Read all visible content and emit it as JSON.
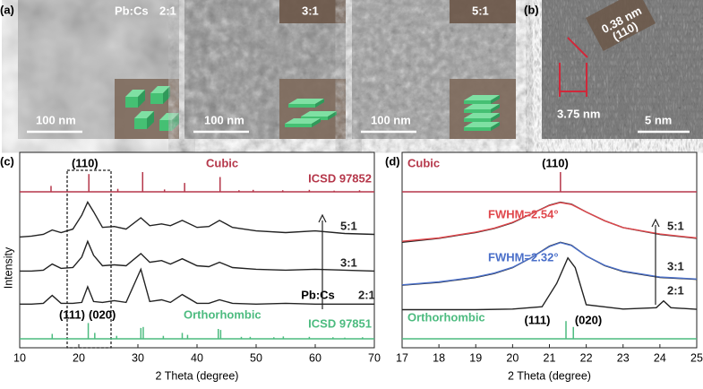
{
  "panel_labels": [
    "(a)",
    "(b)",
    "(c)",
    "(d)"
  ],
  "tem_images": [
    {
      "labels": [
        "Pb:Cs",
        "2:1"
      ],
      "scale_bar": "100 nm"
    },
    {
      "labels": [
        "3:1"
      ],
      "scale_bar": "100 nm"
    },
    {
      "labels": [
        "5:1"
      ],
      "scale_bar": "100 nm"
    }
  ],
  "hrtem": {
    "annotations": [
      "0.38 nm",
      "(110)",
      "3.75 nm"
    ],
    "scale_bar": "5 nm"
  },
  "chart_data": [
    {
      "type": "line",
      "xlabel": "2 Theta (degree)",
      "ylabel": "Intensity",
      "xlim": [
        10,
        70
      ],
      "xticks": [
        10,
        20,
        30,
        40,
        50,
        60,
        70
      ],
      "ylim": [
        0,
        11.2
      ],
      "series": [
        {
          "name": "5:1",
          "color": "#222222",
          "x": [
            10,
            12,
            14,
            15.5,
            17,
            19,
            20.5,
            21.5,
            22.5,
            24,
            26,
            28,
            30.5,
            32,
            34,
            35.5,
            37.5,
            40,
            42,
            43.8,
            46,
            50,
            55,
            60,
            65,
            70
          ],
          "values": [
            6.35,
            6.4,
            6.5,
            6.75,
            6.6,
            6.8,
            7.6,
            8.35,
            7.8,
            6.9,
            6.95,
            6.8,
            7.45,
            7.0,
            7.1,
            7.0,
            7.3,
            6.9,
            6.95,
            7.3,
            6.9,
            6.7,
            6.6,
            6.7,
            6.55,
            6.5
          ]
        },
        {
          "name": "3:1",
          "color": "#222222",
          "x": [
            10,
            12,
            14,
            15.5,
            17,
            19,
            20.5,
            21.5,
            22.5,
            24,
            26,
            28,
            30.5,
            32,
            34,
            35.5,
            37.5,
            40,
            42,
            43.8,
            46,
            50,
            55,
            60,
            65,
            70
          ],
          "values": [
            4.4,
            4.4,
            4.45,
            4.8,
            4.55,
            4.6,
            5.2,
            6.1,
            5.3,
            4.7,
            4.75,
            4.7,
            5.4,
            4.9,
            5.0,
            4.8,
            5.1,
            4.7,
            4.65,
            4.9,
            4.6,
            4.5,
            4.45,
            4.5,
            4.45,
            4.4
          ]
        },
        {
          "name": "2:1",
          "color": "#222222",
          "x": [
            10,
            12,
            14,
            15.5,
            17,
            19,
            20.5,
            21.5,
            22.5,
            24,
            26,
            28,
            30.5,
            32,
            34,
            35.5,
            37.5,
            40,
            42,
            43.8,
            46,
            50,
            55,
            60,
            65,
            70
          ],
          "values": [
            2.5,
            2.5,
            2.55,
            3.0,
            2.55,
            2.55,
            2.6,
            3.5,
            2.65,
            2.6,
            2.7,
            2.6,
            4.5,
            2.65,
            2.75,
            2.6,
            3.05,
            2.55,
            2.55,
            2.75,
            2.55,
            2.5,
            2.55,
            2.5,
            2.5,
            2.5
          ]
        }
      ],
      "references": [
        {
          "name": "Cubic",
          "label": "ICSD 97852",
          "color": "#b5374a",
          "positions": [
            15.3,
            21.7,
            26.6,
            30.8,
            34.5,
            37.9,
            43.9,
            47.1,
            49.5,
            54.5,
            59,
            63.2,
            67.5
          ],
          "intensities": [
            30,
            90,
            15,
            100,
            12,
            45,
            75,
            8,
            10,
            8,
            10,
            6,
            8
          ]
        },
        {
          "name": "Orthorhombic",
          "label": "ICSD 97851",
          "color": "#4cbb7f",
          "positions": [
            15.5,
            21.6,
            22.7,
            26.4,
            30.5,
            30.9,
            34.3,
            37.5,
            38.4,
            43.6,
            44,
            47.5,
            49,
            53,
            54.6,
            59,
            63,
            65,
            68
          ],
          "intensities": [
            25,
            80,
            30,
            15,
            55,
            60,
            15,
            30,
            20,
            50,
            45,
            10,
            10,
            8,
            12,
            10,
            8,
            6,
            8
          ]
        }
      ],
      "annotations": [
        "(110)",
        "(111)",
        "(020)",
        "Pb:Cs"
      ]
    },
    {
      "type": "line",
      "xlabel": "2 Theta (degree)",
      "xlim": [
        17,
        25
      ],
      "xticks": [
        17,
        18,
        19,
        20,
        21,
        22,
        23,
        24,
        25
      ],
      "ylim": [
        0,
        10
      ],
      "series": [
        {
          "name": "5:1",
          "color": "#222222",
          "x": [
            17,
            18,
            19,
            19.5,
            20,
            20.5,
            21,
            21.3,
            21.6,
            22,
            22.5,
            23,
            24,
            25
          ],
          "values": [
            5.4,
            5.6,
            5.9,
            6.1,
            6.4,
            6.85,
            7.3,
            7.45,
            7.35,
            6.95,
            6.5,
            6.15,
            5.8,
            5.6
          ]
        },
        {
          "name": "FWHM=2.54°",
          "color": "#e0474c",
          "x": [
            17,
            18,
            19,
            19.5,
            20,
            20.5,
            21,
            21.3,
            21.6,
            22,
            22.5,
            23,
            24,
            25
          ],
          "values": [
            5.45,
            5.62,
            5.92,
            6.12,
            6.42,
            6.85,
            7.28,
            7.43,
            7.33,
            6.95,
            6.5,
            6.15,
            5.82,
            5.62
          ]
        },
        {
          "name": "3:1",
          "color": "#222222",
          "x": [
            17,
            18,
            19,
            19.5,
            20,
            20.5,
            21,
            21.3,
            21.6,
            22,
            22.5,
            23,
            24,
            25
          ],
          "values": [
            3.2,
            3.35,
            3.6,
            3.8,
            4.1,
            4.6,
            5.2,
            5.4,
            5.25,
            4.7,
            4.2,
            3.9,
            3.6,
            3.5
          ]
        },
        {
          "name": "FWHM=2.32°",
          "color": "#4a6fc9",
          "x": [
            17,
            18,
            19,
            19.5,
            20,
            20.5,
            21,
            21.3,
            21.6,
            22,
            22.5,
            23,
            24,
            25
          ],
          "values": [
            3.22,
            3.37,
            3.62,
            3.82,
            4.12,
            4.6,
            5.18,
            5.38,
            5.23,
            4.7,
            4.22,
            3.92,
            3.62,
            3.52
          ]
        },
        {
          "name": "2:1",
          "color": "#222222",
          "x": [
            17,
            19,
            20,
            20.8,
            21.2,
            21.5,
            21.7,
            22,
            23,
            23.9,
            24.1,
            24.3,
            25
          ],
          "values": [
            1.95,
            1.95,
            1.98,
            2.1,
            3.3,
            4.6,
            4.1,
            2.2,
            1.98,
            2.05,
            2.4,
            2.05,
            1.97
          ]
        }
      ],
      "references": [
        {
          "name": "Cubic",
          "color": "#b5374a",
          "positions": [
            21.3
          ],
          "intensities": [
            100
          ]
        },
        {
          "name": "Orthorhombic",
          "color": "#4cbb7f",
          "positions": [
            21.45,
            21.65
          ],
          "intensities": [
            90,
            60
          ]
        }
      ],
      "annotations": [
        "(110)",
        "(111)",
        "(020)"
      ]
    }
  ]
}
